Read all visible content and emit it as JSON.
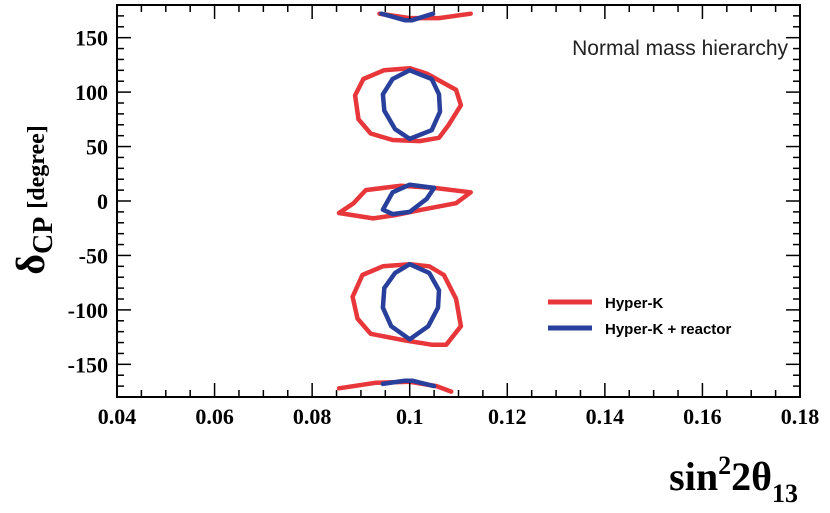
{
  "chart_data": {
    "type": "line",
    "title": "",
    "annotation": "Normal mass hierarchy",
    "xlabel": {
      "base": "sin",
      "sup": "2",
      "mid": "2θ",
      "sub": "13"
    },
    "ylabel": {
      "main": "δ",
      "sub": "CP",
      "unit": "[degree]"
    },
    "xlim": [
      0.04,
      0.18
    ],
    "ylim": [
      -180,
      180
    ],
    "xticks": [
      0.04,
      0.06,
      0.08,
      0.1,
      0.12,
      0.14,
      0.16,
      0.18
    ],
    "xtick_labels": [
      "0.04",
      "0.06",
      "0.08",
      "0.1",
      "0.12",
      "0.14",
      "0.16",
      "0.18"
    ],
    "yticks": [
      -150,
      -100,
      -50,
      0,
      50,
      100,
      150
    ],
    "ytick_labels": [
      "-150",
      "-100",
      "-50",
      "0",
      "50",
      "100",
      "150"
    ],
    "grid": false,
    "legend_position": "bottom-right",
    "series": [
      {
        "name": "Hyper-K",
        "color": "#e8373a",
        "contours": [
          {
            "closed": false,
            "points": [
              [
                0.0938,
                172
              ],
              [
                0.1,
                168
              ],
              [
                0.106,
                168
              ],
              [
                0.1125,
                172
              ]
            ]
          },
          {
            "closed": true,
            "points": [
              [
                0.1,
                122
              ],
              [
                0.0947,
                120
              ],
              [
                0.0905,
                112
              ],
              [
                0.0888,
                97
              ],
              [
                0.0895,
                75
              ],
              [
                0.092,
                62
              ],
              [
                0.0965,
                56
              ],
              [
                0.102,
                55
              ],
              [
                0.106,
                58
              ],
              [
                0.108,
                70
              ],
              [
                0.1105,
                88
              ],
              [
                0.1095,
                102
              ],
              [
                0.1035,
                117
              ]
            ]
          },
          {
            "closed": true,
            "points": [
              [
                0.091,
                10
              ],
              [
                0.098,
                14
              ],
              [
                0.105,
                12
              ],
              [
                0.1125,
                8
              ],
              [
                0.1095,
                -2
              ],
              [
                0.1025,
                -8
              ],
              [
                0.097,
                -13
              ],
              [
                0.0925,
                -16
              ],
              [
                0.0855,
                -11
              ],
              [
                0.0885,
                -2
              ]
            ]
          },
          {
            "closed": true,
            "points": [
              [
                0.1,
                -58
              ],
              [
                0.0945,
                -60
              ],
              [
                0.0903,
                -68
              ],
              [
                0.0883,
                -88
              ],
              [
                0.0893,
                -108
              ],
              [
                0.092,
                -122
              ],
              [
                0.099,
                -128
              ],
              [
                0.1045,
                -132
              ],
              [
                0.1075,
                -132
              ],
              [
                0.1105,
                -115
              ],
              [
                0.1095,
                -90
              ],
              [
                0.107,
                -68
              ],
              [
                0.104,
                -60
              ]
            ]
          },
          {
            "closed": false,
            "points": [
              [
                0.0855,
                -172
              ],
              [
                0.093,
                -167
              ],
              [
                0.1,
                -166
              ],
              [
                0.1055,
                -170
              ],
              [
                0.1085,
                -175
              ]
            ]
          }
        ]
      },
      {
        "name": "Hyper-K + reactor",
        "color": "#283f9b",
        "contours": [
          {
            "closed": false,
            "points": [
              [
                0.0942,
                172
              ],
              [
                0.099,
                166
              ],
              [
                0.1005,
                166
              ],
              [
                0.1048,
                172
              ]
            ]
          },
          {
            "closed": true,
            "points": [
              [
                0.1,
                120
              ],
              [
                0.0965,
                112
              ],
              [
                0.0945,
                98
              ],
              [
                0.0948,
                83
              ],
              [
                0.097,
                66
              ],
              [
                0.1,
                57
              ],
              [
                0.1045,
                65
              ],
              [
                0.1062,
                82
              ],
              [
                0.106,
                98
              ],
              [
                0.1045,
                112
              ]
            ]
          },
          {
            "closed": true,
            "points": [
              [
                0.0965,
                8
              ],
              [
                0.1,
                15
              ],
              [
                0.105,
                12
              ],
              [
                0.1035,
                2
              ],
              [
                0.1,
                -10
              ],
              [
                0.0965,
                -12
              ],
              [
                0.0945,
                -8
              ]
            ]
          },
          {
            "closed": true,
            "points": [
              [
                0.1,
                -58
              ],
              [
                0.097,
                -66
              ],
              [
                0.0948,
                -80
              ],
              [
                0.0945,
                -98
              ],
              [
                0.0962,
                -115
              ],
              [
                0.1,
                -127
              ],
              [
                0.1038,
                -115
              ],
              [
                0.1058,
                -98
              ],
              [
                0.106,
                -82
              ],
              [
                0.104,
                -66
              ]
            ]
          },
          {
            "closed": false,
            "points": [
              [
                0.0945,
                -168
              ],
              [
                0.099,
                -165
              ],
              [
                0.1005,
                -165
              ],
              [
                0.105,
                -170
              ]
            ]
          }
        ]
      }
    ]
  }
}
